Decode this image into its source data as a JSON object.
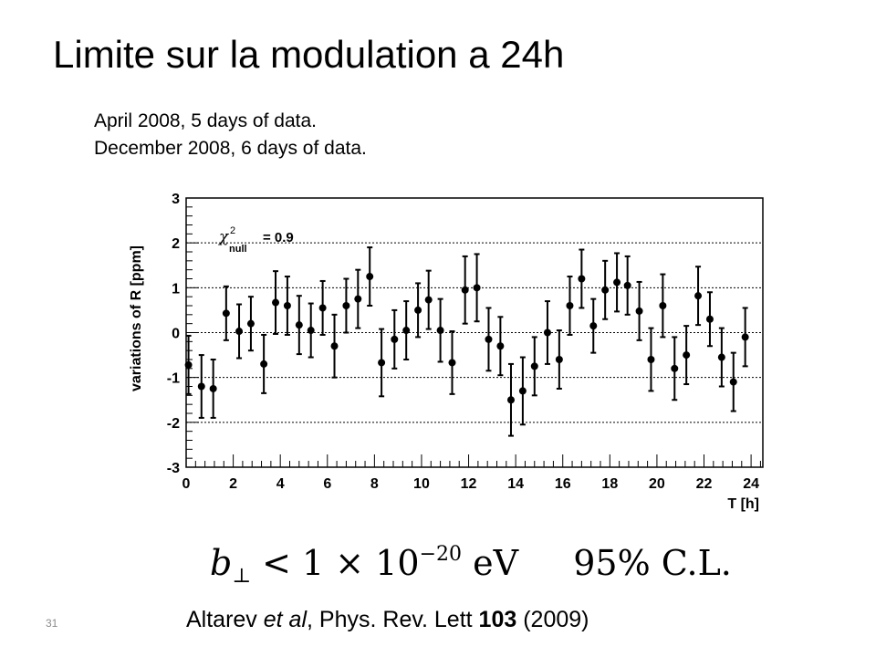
{
  "slide": {
    "title": "Limite sur la modulation a 24h",
    "subtitle_lines": [
      "April 2008, 5 days of data.",
      "December 2008, 6 days of data."
    ],
    "formula": {
      "var": "b",
      "sub": "⊥",
      "rel": "< 1 × 10",
      "exp": "−20",
      "unit": "eV",
      "cl": "95% C.L."
    },
    "citation": {
      "authors": "Altarev",
      "etal": "et al",
      "journal": ", Phys. Rev. Lett ",
      "volume": "103",
      "year": " (2009)"
    },
    "page_number": "31"
  },
  "chart_data": {
    "type": "scatter",
    "xlabel": "T [h]",
    "ylabel": "variations of R [ppm]",
    "xlim": [
      0,
      24.5
    ],
    "ylim": [
      -3,
      3
    ],
    "xticks": [
      0,
      2,
      4,
      6,
      8,
      10,
      12,
      14,
      16,
      18,
      20,
      22,
      24
    ],
    "yticks": [
      -3,
      -2,
      -1,
      0,
      1,
      2,
      3
    ],
    "grid": "horizontal dotted",
    "annotation": {
      "symbol": "χ",
      "sup": "2",
      "sub": "null",
      "text": "= 0.9"
    },
    "points": [
      {
        "x": 0.1,
        "y": -0.72,
        "err": 0.65
      },
      {
        "x": 0.65,
        "y": -1.2,
        "err": 0.7
      },
      {
        "x": 1.15,
        "y": -1.25,
        "err": 0.65
      },
      {
        "x": 1.7,
        "y": 0.43,
        "err": 0.6
      },
      {
        "x": 2.25,
        "y": 0.03,
        "err": 0.6
      },
      {
        "x": 2.75,
        "y": 0.2,
        "err": 0.6
      },
      {
        "x": 3.3,
        "y": -0.7,
        "err": 0.65
      },
      {
        "x": 3.8,
        "y": 0.67,
        "err": 0.7
      },
      {
        "x": 4.3,
        "y": 0.6,
        "err": 0.65
      },
      {
        "x": 4.8,
        "y": 0.17,
        "err": 0.65
      },
      {
        "x": 5.3,
        "y": 0.05,
        "err": 0.6
      },
      {
        "x": 5.8,
        "y": 0.55,
        "err": 0.6
      },
      {
        "x": 6.3,
        "y": -0.3,
        "err": 0.7
      },
      {
        "x": 6.8,
        "y": 0.6,
        "err": 0.6
      },
      {
        "x": 7.3,
        "y": 0.75,
        "err": 0.65
      },
      {
        "x": 7.8,
        "y": 1.25,
        "err": 0.65
      },
      {
        "x": 8.3,
        "y": -0.67,
        "err": 0.75
      },
      {
        "x": 8.85,
        "y": -0.15,
        "err": 0.65
      },
      {
        "x": 9.35,
        "y": 0.05,
        "err": 0.65
      },
      {
        "x": 9.85,
        "y": 0.5,
        "err": 0.6
      },
      {
        "x": 10.3,
        "y": 0.73,
        "err": 0.65
      },
      {
        "x": 10.8,
        "y": 0.05,
        "err": 0.7
      },
      {
        "x": 11.3,
        "y": -0.67,
        "err": 0.7
      },
      {
        "x": 11.85,
        "y": 0.95,
        "err": 0.75
      },
      {
        "x": 12.35,
        "y": 1.0,
        "err": 0.75
      },
      {
        "x": 12.85,
        "y": -0.15,
        "err": 0.7
      },
      {
        "x": 13.35,
        "y": -0.3,
        "err": 0.65
      },
      {
        "x": 13.8,
        "y": -1.5,
        "err": 0.8
      },
      {
        "x": 14.3,
        "y": -1.3,
        "err": 0.75
      },
      {
        "x": 14.8,
        "y": -0.75,
        "err": 0.65
      },
      {
        "x": 15.35,
        "y": 0.0,
        "err": 0.7
      },
      {
        "x": 15.85,
        "y": -0.6,
        "err": 0.65
      },
      {
        "x": 16.3,
        "y": 0.6,
        "err": 0.65
      },
      {
        "x": 16.8,
        "y": 1.2,
        "err": 0.65
      },
      {
        "x": 17.3,
        "y": 0.15,
        "err": 0.6
      },
      {
        "x": 17.8,
        "y": 0.95,
        "err": 0.65
      },
      {
        "x": 18.3,
        "y": 1.12,
        "err": 0.65
      },
      {
        "x": 18.75,
        "y": 1.05,
        "err": 0.65
      },
      {
        "x": 19.25,
        "y": 0.48,
        "err": 0.65
      },
      {
        "x": 19.75,
        "y": -0.6,
        "err": 0.7
      },
      {
        "x": 20.25,
        "y": 0.6,
        "err": 0.7
      },
      {
        "x": 20.75,
        "y": -0.8,
        "err": 0.7
      },
      {
        "x": 21.25,
        "y": -0.5,
        "err": 0.65
      },
      {
        "x": 21.75,
        "y": 0.82,
        "err": 0.65
      },
      {
        "x": 22.25,
        "y": 0.3,
        "err": 0.6
      },
      {
        "x": 22.75,
        "y": -0.55,
        "err": 0.65
      },
      {
        "x": 23.25,
        "y": -1.1,
        "err": 0.65
      },
      {
        "x": 23.75,
        "y": -0.1,
        "err": 0.65
      }
    ]
  }
}
